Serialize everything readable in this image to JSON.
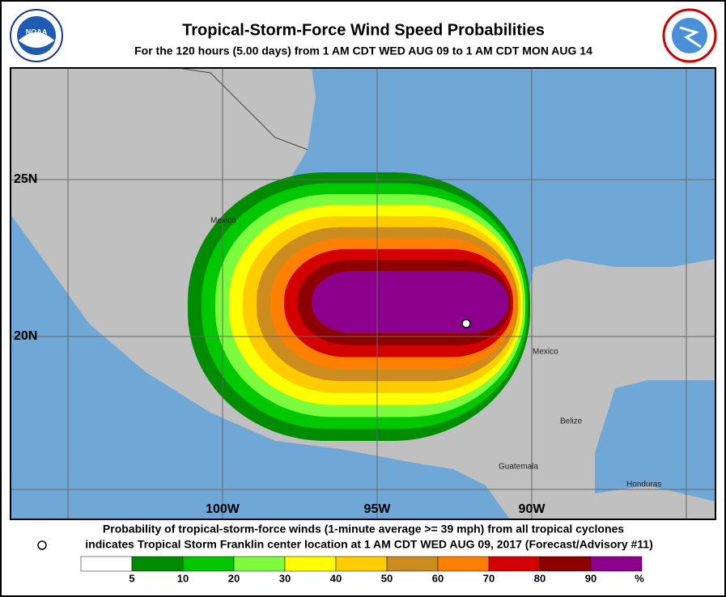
{
  "header": {
    "title": "Tropical-Storm-Force Wind Speed Probabilities",
    "subtitle": "For the 120 hours (5.00 days) from 1 AM CDT WED AUG 09 to 1 AM CDT MON AUG 14"
  },
  "map": {
    "lat_labels": [
      "25N",
      "20N"
    ],
    "lon_labels": [
      "100W",
      "95W",
      "90W"
    ],
    "places": [
      "Mexico",
      "Mexico",
      "Belize",
      "Guatemala",
      "Honduras"
    ]
  },
  "footer": {
    "line1": "Probability of tropical-storm-force winds (1-minute average >= 39 mph) from all tropical cyclones",
    "line2": "indicates Tropical Storm Franklin center location at 1 AM CDT WED AUG 09, 2017 (Forecast/Advisory #11)"
  },
  "legend": {
    "colors": [
      "#ffffff",
      "#008c00",
      "#00c800",
      "#7cfc3c",
      "#ffff00",
      "#ffcc00",
      "#cc8c1e",
      "#ff8000",
      "#d20000",
      "#8c0000",
      "#8c008c"
    ],
    "ticks": [
      5,
      10,
      20,
      30,
      40,
      50,
      60,
      70,
      80,
      90
    ],
    "unit": "%"
  }
}
